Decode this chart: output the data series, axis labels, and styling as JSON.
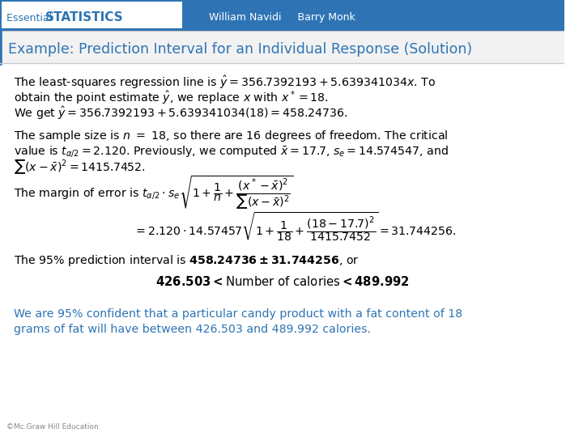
{
  "header_bg_color": "#2E74B5",
  "header_text_left": "Essential STATISTICS",
  "header_text_left_bold": "STATISTICS",
  "header_text_left_normal": "Essential ",
  "header_authors": "William Navidi     Barry Monk",
  "title_text": "Example: Prediction Interval for an Individual Response (Solution)",
  "title_color": "#2E74B5",
  "title_bg": "#F2F2F2",
  "body_bg": "#FFFFFF",
  "body_text_color": "#000000",
  "blue_text_color": "#2E74B5",
  "copyright_text": "©Mc.Graw Hill Education.",
  "footer_color": "#888888"
}
